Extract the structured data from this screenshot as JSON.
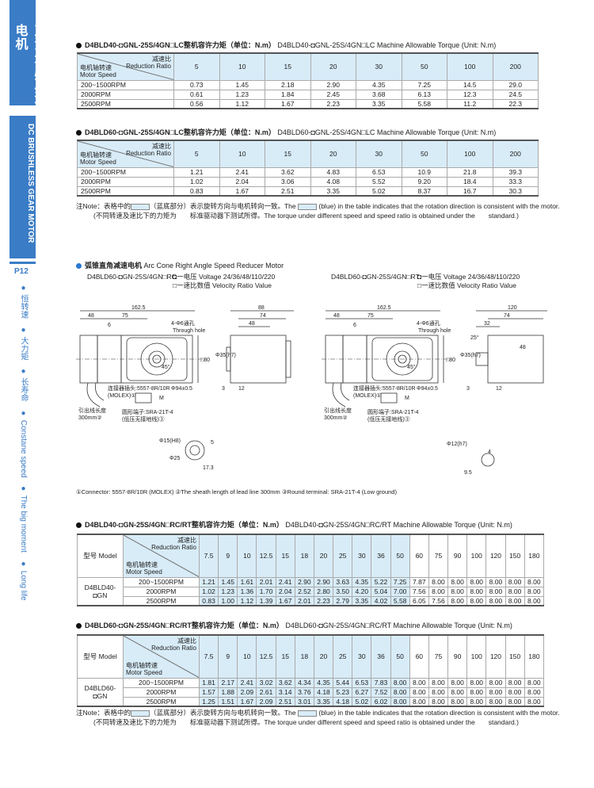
{
  "sidebar": {
    "cn_title": "直流无刷减速电机",
    "en_title": "DC BRUSHLESS GEAR MOTOR",
    "page": "P12",
    "features": [
      "● 恒转速",
      "● 大力矩",
      "● 长寿命",
      "● Constane speed",
      "● The big moment",
      "● Long life"
    ]
  },
  "colors": {
    "accent": "#3a7cc6",
    "table_highlight": "#d8ecf8"
  },
  "table1": {
    "title_cn": "D4BLD40-◘GNL-25S/4GN□LC整机容许力矩（单位：N.m）",
    "title_en": "D4BLD40-◘GNL-25S/4GN□LC Machine Allowable Torque (Unit: N.m)",
    "corner": {
      "ratio_cn": "减速比",
      "ratio_en": "Reduction Ratio",
      "speed_cn": "电机轴转速",
      "speed_en": "Motor Speed"
    },
    "ratios": [
      "5",
      "10",
      "15",
      "20",
      "30",
      "50",
      "100",
      "200"
    ],
    "rows": [
      {
        "speed": "200~1500RPM",
        "values": [
          "0.73",
          "1.45",
          "2.18",
          "2.90",
          "4.35",
          "7.25",
          "14.5",
          "29.0"
        ]
      },
      {
        "speed": "2000RPM",
        "values": [
          "0.61",
          "1.23",
          "1.84",
          "2.45",
          "3.68",
          "6.13",
          "12.3",
          "24.5"
        ]
      },
      {
        "speed": "2500RPM",
        "values": [
          "0.56",
          "1.12",
          "1.67",
          "2.23",
          "3.35",
          "5.58",
          "11.2",
          "22.3"
        ]
      }
    ]
  },
  "table2": {
    "title_cn": "D4BLD60-◘GNL-25S/4GN□LC整机容许力矩（单位：N.m）",
    "title_en": "D4BLD60-◘GNL-25S/4GN□LC Machine Allowable Torque (Unit: N.m)",
    "corner": {
      "ratio_cn": "减速比",
      "ratio_en": "Reduction Ratio",
      "speed_cn": "电机轴转速",
      "speed_en": "Motor Speed"
    },
    "ratios": [
      "5",
      "10",
      "15",
      "20",
      "30",
      "50",
      "100",
      "200"
    ],
    "rows": [
      {
        "speed": "200~1500RPM",
        "values": [
          "1.21",
          "2.41",
          "3.62",
          "4.83",
          "6.53",
          "10.9",
          "21.8",
          "39.3"
        ]
      },
      {
        "speed": "2000RPM",
        "values": [
          "1.02",
          "2.04",
          "3.06",
          "4.08",
          "5.52",
          "9.20",
          "18.4",
          "33.3"
        ]
      },
      {
        "speed": "2500RPM",
        "values": [
          "0.83",
          "1.67",
          "2.51",
          "3.35",
          "5.02",
          "8.37",
          "16.7",
          "30.3"
        ]
      }
    ]
  },
  "note": {
    "prefix": "注Note：表格中的",
    "l1a": "（蓝底部分）表示旋转方向与电机转向一致。The",
    "l1b": "(blue) in the table indicates that the rotation direction is consistent with the motor.",
    "l2": "(不同转速及速比下的力矩为　　标准驱动器下测试所得。The torque under different speed and speed ratio is obtained under the　　standard.)"
  },
  "section3": {
    "title_cn": "弧锥直角减速电机",
    "title_en": "Arc Cone Right Angle Speed Reducer Motor",
    "left": {
      "model": "D4BLD60-◘GN-25S/4GN□RC",
      "voltage": "◘一电压 Voltage 24/36/48/110/220",
      "ratio": "□一速比数值 Velocity Ratio Value"
    },
    "right": {
      "model": "D4BLD60-◘GN-25S/4GN□RT",
      "voltage": "◘一电压 Voltage 24/36/48/110/220",
      "ratio": "□一速比数值 Velocity Ratio Value"
    },
    "dims_left": {
      "d1": "162.5",
      "d2": "48",
      "d3": "75",
      "d4": "6",
      "hole": "4-Φ6通孔",
      "hole_en": "Through hole",
      "sq": "□80",
      "angle": "45°",
      "flange": "Φ94±0.5",
      "conn": "连接器插头:5557-8R/10R",
      "molex": "(MOLEX)①",
      "m": "M",
      "lead": "引出线长度",
      "lead_len": "300mm②",
      "term": "圆形端子:SRA-21T-4",
      "term2": "(低压无接地线)③",
      "side1": "88",
      "side2": "74",
      "side3": "48",
      "shaft": "Φ35(h7)",
      "s3": "3",
      "s12": "12",
      "bore": "Φ15(H8)",
      "key": "5",
      "d25": "Φ25",
      "k17": "17.3"
    },
    "dims_right": {
      "d1": "162.5",
      "d2": "48",
      "d3": "75",
      "d4": "6",
      "hole": "4-Φ6通孔",
      "hole_en": "Through hole",
      "sq": "□80",
      "angle": "45°",
      "flange": "Φ94±0.5",
      "conn": "连接器插头:5557-8R/10R",
      "molex": "(MOLEX)①",
      "m": "M",
      "lead": "引出线长度",
      "lead_len": "300mm②",
      "term": "圆形端子:SRA-21T-4",
      "term2": "(低压无接地线)③",
      "side1": "120",
      "side2": "74",
      "side3": "48",
      "s32": "32",
      "ang": "25°",
      "shaft": "Φ35(h7)",
      "s3": "3",
      "s12": "12",
      "shaft2": "Φ12(h7)",
      "k4": "4",
      "k95": "9.5"
    },
    "footnote": "①Connector: 5557-8R/10R (MOLEX)  ②The sheath length of lead line 300mm  ③Round terminal: SRA-21T-4 (Low ground)"
  },
  "table3": {
    "title_cn": "D4BLD40-◘GN-25S/4GN□RC/RT整机容许力矩（单位：N.m）",
    "title_en": "D4BLD40-◘GN-25S/4GN□RC/RT Machine Allowable Torque (Unit: N.m)",
    "model_label": "型号 Model",
    "corner": {
      "ratio_cn": "减速比",
      "ratio_en": "Reduction Ratio",
      "speed_cn": "电机轴转速",
      "speed_en": "Motor Speed"
    },
    "model": "D4BLD40-◘GN",
    "ratios": [
      "7.5",
      "9",
      "10",
      "12.5",
      "15",
      "18",
      "20",
      "25",
      "30",
      "36",
      "50",
      "60",
      "75",
      "90",
      "100",
      "120",
      "150",
      "180"
    ],
    "highlight_count": 11,
    "rows": [
      {
        "speed": "200~1500RPM",
        "values": [
          "1.21",
          "1.45",
          "1.61",
          "2.01",
          "2.41",
          "2.90",
          "2.90",
          "3.63",
          "4.35",
          "5.22",
          "7.25",
          "7.87",
          "8.00",
          "8.00",
          "8.00",
          "8.00",
          "8.00",
          "8.00"
        ]
      },
      {
        "speed": "2000RPM",
        "values": [
          "1.02",
          "1.23",
          "1.36",
          "1.70",
          "2.04",
          "2.52",
          "2.80",
          "3.50",
          "4.20",
          "5.04",
          "7.00",
          "7.56",
          "8.00",
          "8.00",
          "8.00",
          "8.00",
          "8.00",
          "8.00"
        ]
      },
      {
        "speed": "2500RPM",
        "values": [
          "0.83",
          "1.00",
          "1.12",
          "1.39",
          "1.67",
          "2.01",
          "2.23",
          "2.79",
          "3.35",
          "4.02",
          "5.58",
          "6.05",
          "7.56",
          "8.00",
          "8.00",
          "8.00",
          "8.00",
          "8.00"
        ]
      }
    ]
  },
  "table4": {
    "title_cn": "D4BLD60-◘GN-25S/4GN□RC/RT整机容许力矩（单位：N.m）",
    "title_en": "D4BLD60-◘GN-25S/4GN□RC/RT Machine Allowable Torque (Unit: N.m)",
    "model_label": "型号 Model",
    "corner": {
      "ratio_cn": "减速比",
      "ratio_en": "Reduction Ratio",
      "speed_cn": "电机轴转速",
      "speed_en": "Motor Speed"
    },
    "model": "D4BLD60-◘GN",
    "ratios": [
      "7.5",
      "9",
      "10",
      "12.5",
      "15",
      "18",
      "20",
      "25",
      "30",
      "36",
      "50",
      "60",
      "75",
      "90",
      "100",
      "120",
      "150",
      "180"
    ],
    "highlight_count": 11,
    "rows": [
      {
        "speed": "200~1500RPM",
        "values": [
          "1.81",
          "2.17",
          "2.41",
          "3.02",
          "3.62",
          "4.34",
          "4.35",
          "5.44",
          "6.53",
          "7.83",
          "8.00",
          "8.00",
          "8.00",
          "8.00",
          "8.00",
          "8.00",
          "8.00",
          "8.00"
        ]
      },
      {
        "speed": "2000RPM",
        "values": [
          "1.57",
          "1.88",
          "2.09",
          "2.61",
          "3.14",
          "3.76",
          "4.18",
          "5.23",
          "6.27",
          "7.52",
          "8.00",
          "8.00",
          "8.00",
          "8.00",
          "8.00",
          "8.00",
          "8.00",
          "8.00"
        ]
      },
      {
        "speed": "2500RPM",
        "values": [
          "1.25",
          "1.51",
          "1.67",
          "2.09",
          "2.51",
          "3.01",
          "3.35",
          "4.18",
          "5.02",
          "6.02",
          "8.00",
          "8.00",
          "8.00",
          "8.00",
          "8.00",
          "8.00",
          "8.00",
          "8.00"
        ]
      }
    ]
  }
}
